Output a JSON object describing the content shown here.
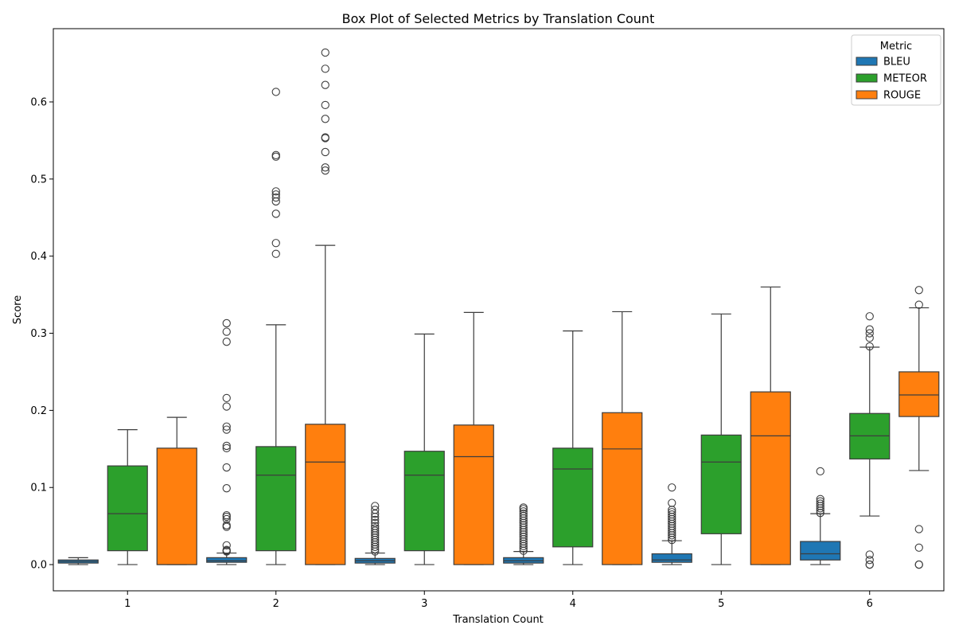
{
  "chart_data": {
    "type": "boxplot",
    "title": "Box Plot of Selected Metrics by Translation Count",
    "xlabel": "Translation Count",
    "ylabel": "Score",
    "ylim": [
      -0.034,
      0.695
    ],
    "yticks": [
      "0.0",
      "0.1",
      "0.2",
      "0.3",
      "0.4",
      "0.5",
      "0.6"
    ],
    "grid": false,
    "categories": [
      "1",
      "2",
      "3",
      "4",
      "5",
      "6"
    ],
    "legend": {
      "title": "Metric",
      "placement": "top-right"
    },
    "series": [
      {
        "name": "BLEU",
        "color": "#1f77b4",
        "boxes": [
          {
            "whislo": 0.0,
            "q1": 0.002,
            "med": 0.004,
            "q3": 0.006,
            "whishi": 0.009,
            "fliers": []
          },
          {
            "whislo": 0.0,
            "q1": 0.003,
            "med": 0.005,
            "q3": 0.009,
            "whishi": 0.015,
            "fliers": [
              0.017,
              0.018,
              0.019,
              0.025,
              0.049,
              0.051,
              0.059,
              0.062,
              0.064,
              0.099,
              0.126,
              0.151,
              0.154,
              0.175,
              0.179,
              0.205,
              0.216,
              0.289,
              0.302,
              0.313
            ]
          },
          {
            "whislo": 0.0,
            "q1": 0.002,
            "med": 0.005,
            "q3": 0.008,
            "whishi": 0.015,
            "fliers": [
              0.017,
              0.02,
              0.023,
              0.026,
              0.029,
              0.032,
              0.035,
              0.038,
              0.041,
              0.044,
              0.047,
              0.05,
              0.054,
              0.058,
              0.062,
              0.066,
              0.071,
              0.076
            ]
          },
          {
            "whislo": 0.0,
            "q1": 0.002,
            "med": 0.005,
            "q3": 0.009,
            "whishi": 0.017,
            "fliers": [
              0.018,
              0.021,
              0.024,
              0.027,
              0.03,
              0.033,
              0.036,
              0.039,
              0.042,
              0.045,
              0.048,
              0.051,
              0.054,
              0.057,
              0.06,
              0.063,
              0.066,
              0.069,
              0.072,
              0.074
            ]
          },
          {
            "whislo": 0.0,
            "q1": 0.003,
            "med": 0.006,
            "q3": 0.014,
            "whishi": 0.031,
            "fliers": [
              0.032,
              0.035,
              0.038,
              0.041,
              0.044,
              0.047,
              0.05,
              0.053,
              0.056,
              0.059,
              0.062,
              0.065,
              0.068,
              0.071,
              0.08,
              0.1
            ]
          },
          {
            "whislo": 0.0,
            "q1": 0.006,
            "med": 0.014,
            "q3": 0.03,
            "whishi": 0.066,
            "fliers": [
              0.067,
              0.07,
              0.073,
              0.076,
              0.079,
              0.082,
              0.085,
              0.121
            ]
          }
        ]
      },
      {
        "name": "METEOR",
        "color": "#2ca02c",
        "boxes": [
          {
            "whislo": 0.0,
            "q1": 0.018,
            "med": 0.066,
            "q3": 0.128,
            "whishi": 0.175,
            "fliers": []
          },
          {
            "whislo": 0.0,
            "q1": 0.018,
            "med": 0.116,
            "q3": 0.153,
            "whishi": 0.311,
            "fliers": [
              0.403,
              0.417,
              0.455,
              0.471,
              0.476,
              0.48,
              0.484,
              0.529,
              0.531,
              0.613
            ]
          },
          {
            "whislo": 0.0,
            "q1": 0.018,
            "med": 0.116,
            "q3": 0.147,
            "whishi": 0.299,
            "fliers": []
          },
          {
            "whislo": 0.0,
            "q1": 0.023,
            "med": 0.124,
            "q3": 0.151,
            "whishi": 0.303,
            "fliers": []
          },
          {
            "whislo": 0.0,
            "q1": 0.04,
            "med": 0.133,
            "q3": 0.168,
            "whishi": 0.325,
            "fliers": []
          },
          {
            "whislo": 0.063,
            "q1": 0.137,
            "med": 0.167,
            "q3": 0.196,
            "whishi": 0.282,
            "fliers": [
              0.0,
              0.0,
              0.006,
              0.013,
              0.283,
              0.294,
              0.3,
              0.305,
              0.322
            ]
          }
        ]
      },
      {
        "name": "ROUGE",
        "color": "#ff7f0e",
        "boxes": [
          {
            "whislo": 0.0,
            "q1": 0.0,
            "med": 0.0,
            "q3": 0.151,
            "whishi": 0.191,
            "fliers": []
          },
          {
            "whislo": 0.0,
            "q1": 0.0,
            "med": 0.133,
            "q3": 0.182,
            "whishi": 0.414,
            "fliers": [
              0.511,
              0.515,
              0.535,
              0.553,
              0.554,
              0.578,
              0.596,
              0.622,
              0.643,
              0.664
            ]
          },
          {
            "whislo": 0.0,
            "q1": 0.0,
            "med": 0.14,
            "q3": 0.181,
            "whishi": 0.327,
            "fliers": []
          },
          {
            "whislo": 0.0,
            "q1": 0.0,
            "med": 0.15,
            "q3": 0.197,
            "whishi": 0.328,
            "fliers": []
          },
          {
            "whislo": 0.0,
            "q1": 0.0,
            "med": 0.167,
            "q3": 0.224,
            "whishi": 0.36,
            "fliers": []
          },
          {
            "whislo": 0.122,
            "q1": 0.192,
            "med": 0.22,
            "q3": 0.25,
            "whishi": 0.333,
            "fliers": [
              0.0,
              0.0,
              0.022,
              0.046,
              0.337,
              0.356
            ]
          }
        ]
      }
    ]
  }
}
